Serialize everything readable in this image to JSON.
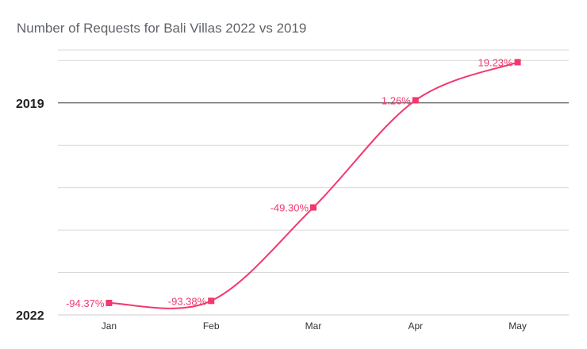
{
  "chart_data": {
    "type": "line",
    "title": "Number of Requests for Bali Villas 2022 vs 2019",
    "categories": [
      "Jan",
      "Feb",
      "Mar",
      "Apr",
      "May"
    ],
    "series": [
      {
        "name": "2022 vs 2019",
        "values": [
          -94.37,
          -93.38,
          -49.3,
          1.26,
          19.23
        ],
        "labels": [
          "-94.37%",
          "-93.38%",
          "-49.30%",
          "1.26%",
          "19.23%"
        ]
      }
    ],
    "ylim": [
      -100,
      25
    ],
    "y_reference_labels": [
      {
        "label": "2019",
        "value": 0
      },
      {
        "label": "2022",
        "value": -100
      }
    ],
    "grid": true,
    "line_color": "#f2386e"
  }
}
